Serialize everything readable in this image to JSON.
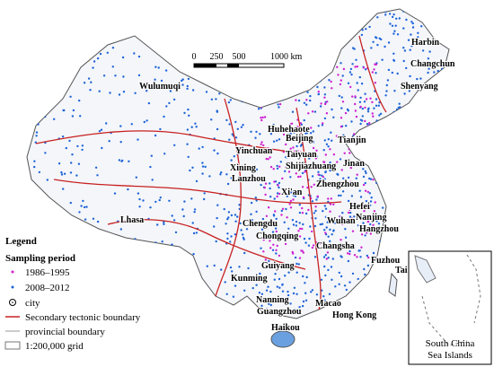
{
  "map": {
    "scale_bar": [
      "0",
      "250",
      "500",
      "1000 km"
    ],
    "cities": [
      "Harbin",
      "Changchun",
      "Shenyang",
      "Huhehaote",
      "Beijing",
      "Tianjin",
      "Yinchuan",
      "Taiyuan",
      "Shijiazhuang",
      "Jinan",
      "Xining",
      "Lanzhou",
      "Zhengzhou",
      "Xi'an",
      "Wulumuqi",
      "Lhasa",
      "Hefei",
      "Nanjing",
      "Wuhan",
      "Hangzhou",
      "Chengdu",
      "Chongqing",
      "Changsha",
      "Fuzhou",
      "Tai",
      "Guiyang",
      "Kunming",
      "Nanning",
      "Guangzhou",
      "Macao",
      "Hong Kong",
      "Haikou"
    ],
    "legend": {
      "title": "Legend",
      "subtitle": "Sampling period",
      "items": [
        "1986–1995",
        "2008–2012",
        "city",
        "Secondary tectonic boundary",
        "provincial boundary",
        "1:200,000 grid"
      ]
    },
    "inset_label": [
      "South China",
      "Sea Islands"
    ]
  }
}
